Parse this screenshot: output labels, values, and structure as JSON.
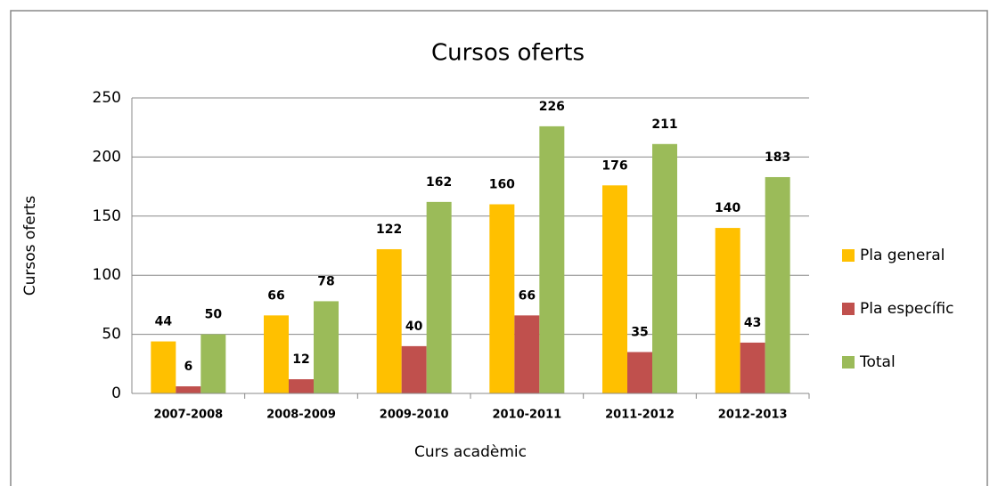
{
  "chart_data": {
    "type": "bar",
    "title": "Cursos oferts",
    "x_label": "Curs acadèmic",
    "y_label": "Cursos oferts",
    "categories": [
      "2007-2008",
      "2008-2009",
      "2009-2010",
      "2010-2011",
      "2011-2012",
      "2012-2013"
    ],
    "series": [
      {
        "name": "Pla general",
        "color": "#ffc000",
        "values": [
          44,
          66,
          122,
          160,
          176,
          140
        ]
      },
      {
        "name": "Pla específic",
        "color": "#c0504d",
        "values": [
          6,
          12,
          40,
          66,
          35,
          43
        ]
      },
      {
        "name": "Total",
        "color": "#9bbb59",
        "values": [
          50,
          78,
          162,
          226,
          211,
          183
        ]
      }
    ],
    "ylim": [
      0,
      250
    ],
    "yticks": [
      0,
      50,
      100,
      150,
      200,
      250
    ],
    "grid": true,
    "legend": "right"
  }
}
